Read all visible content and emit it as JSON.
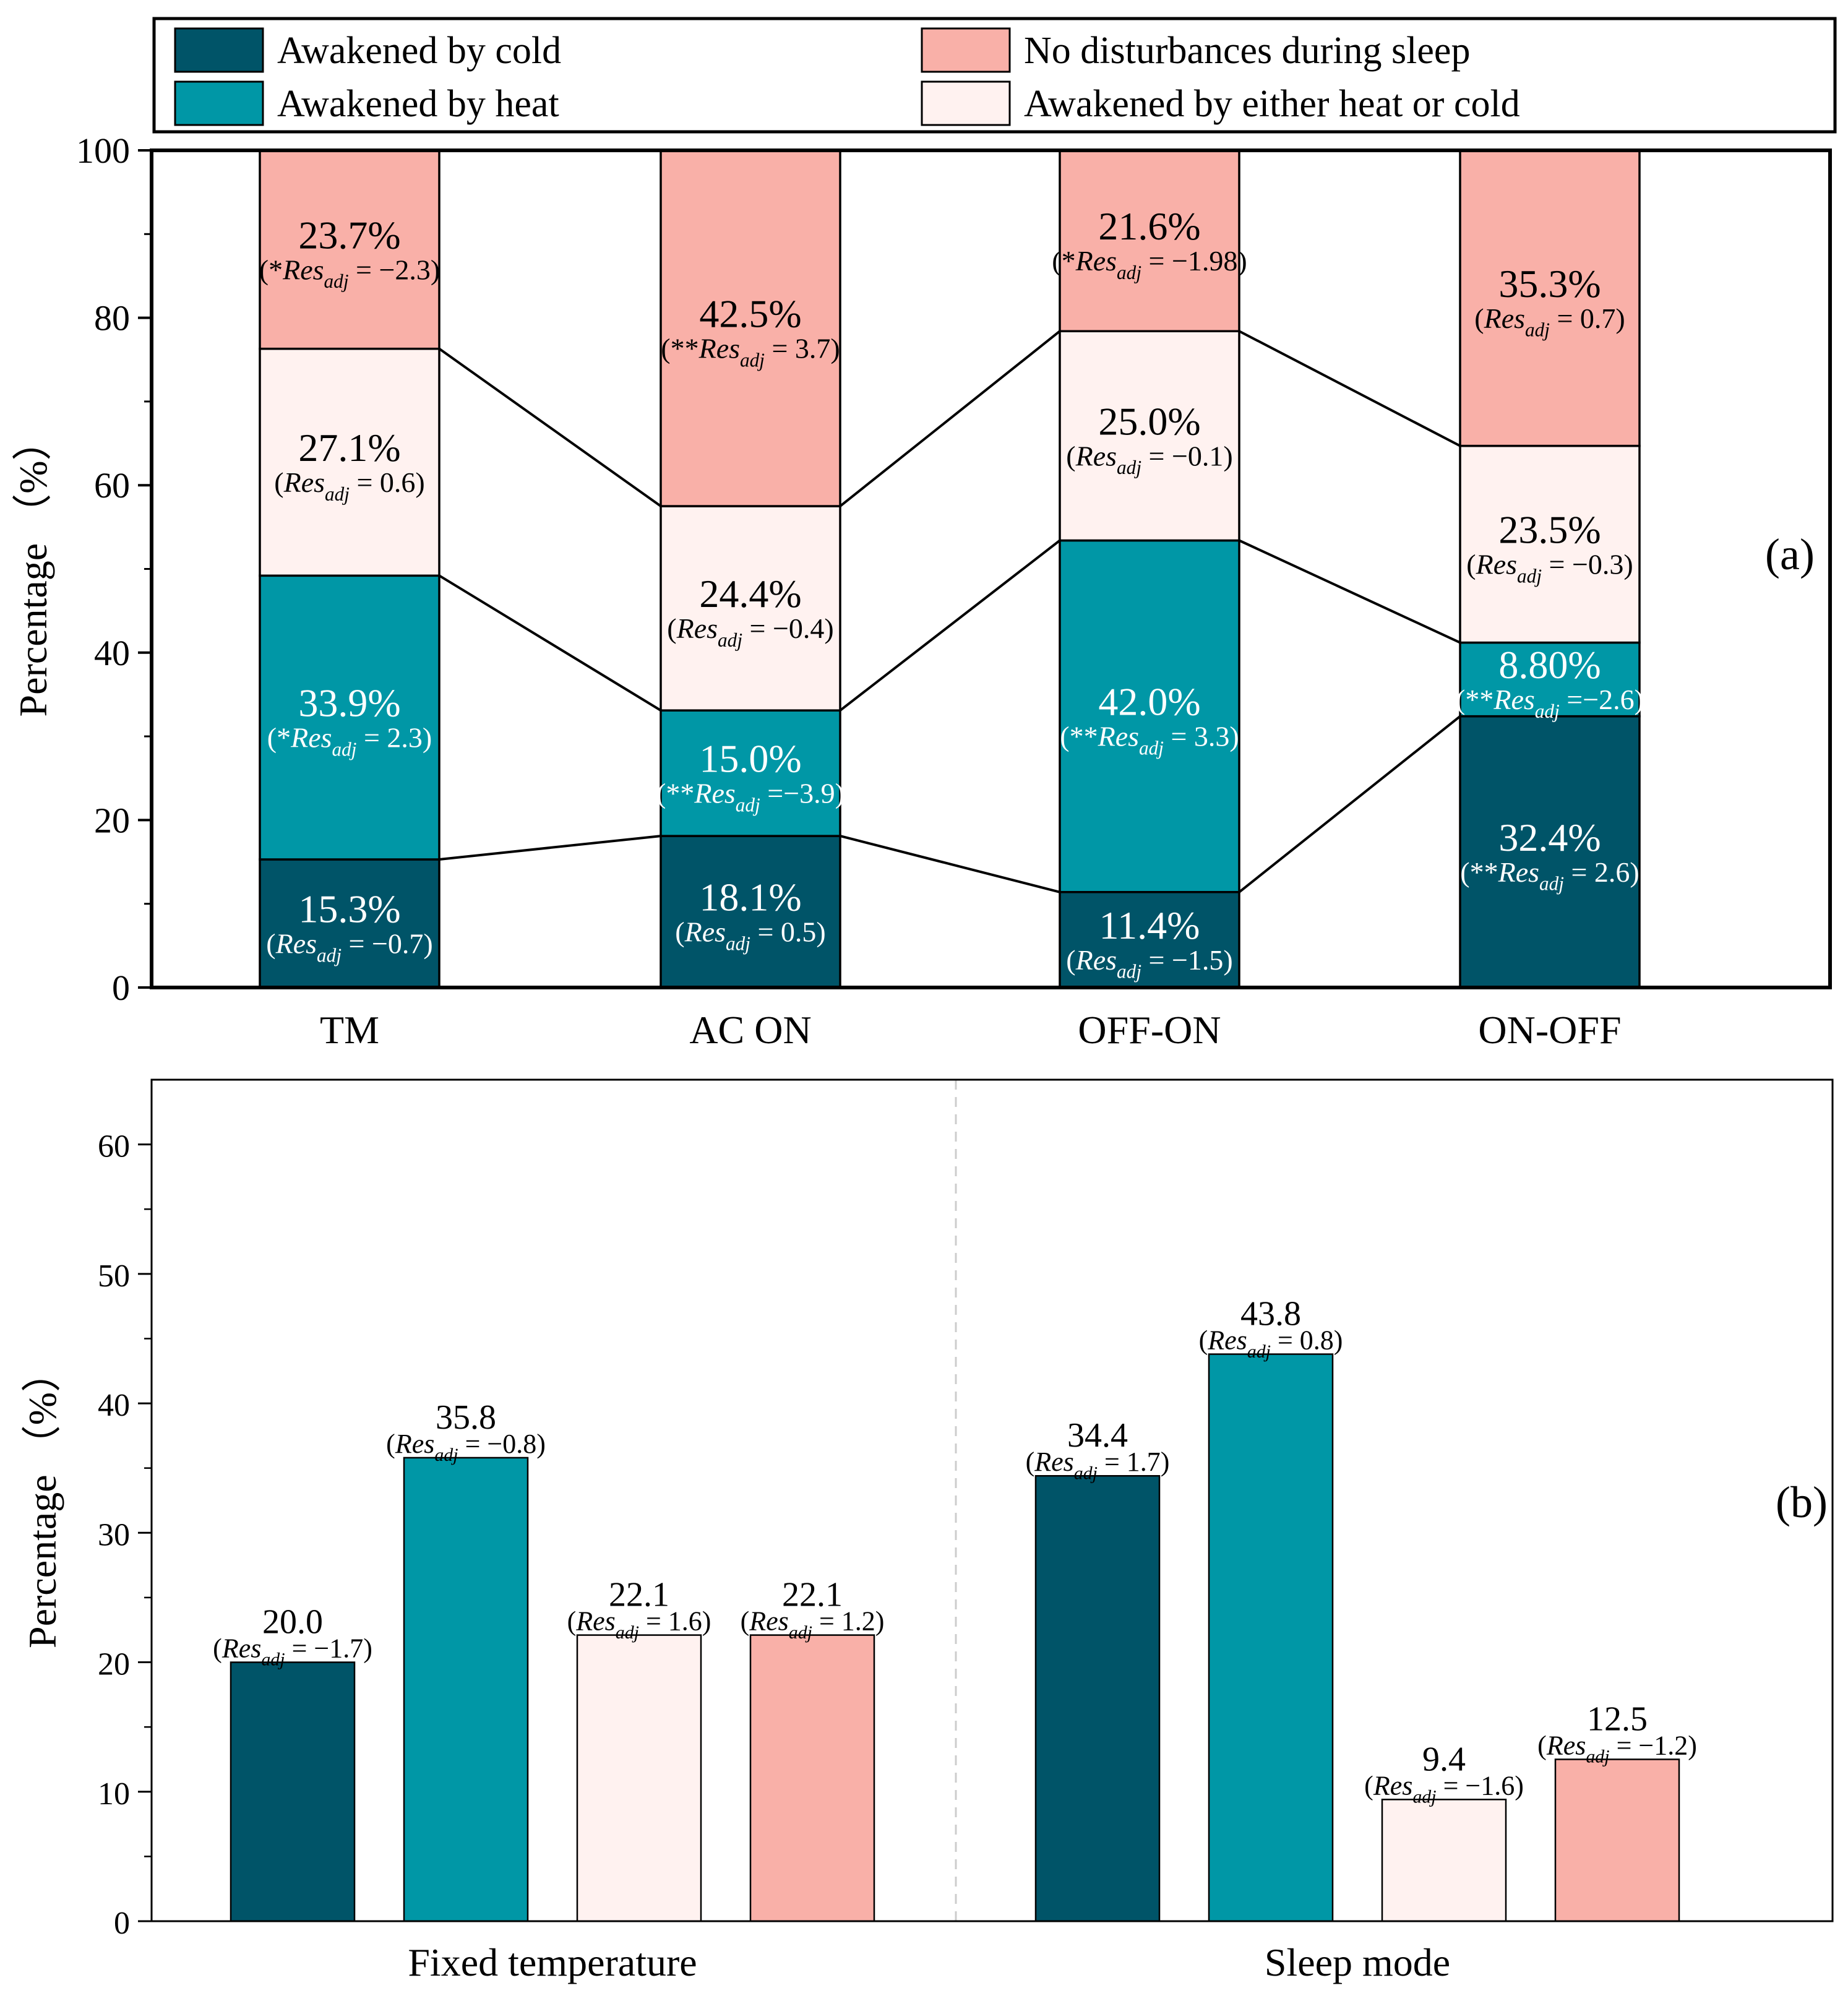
{
  "legend": {
    "entries": [
      {
        "label": "Awakened by cold",
        "color": "#005468"
      },
      {
        "label": "No disturbances during sleep",
        "color": "#F9B0A8"
      },
      {
        "label": "Awakened by heat",
        "color": "#0097A6"
      },
      {
        "label": "Awakened by either heat or cold",
        "color": "#FFF2F0"
      }
    ]
  },
  "chart_data": [
    {
      "type": "bar",
      "stacked": true,
      "panel_label": "(a)",
      "ylabel": "Percentage （%）",
      "ylim": [
        0,
        100
      ],
      "yticks": [
        "0",
        "20",
        "40",
        "60",
        "80",
        "100"
      ],
      "categories": [
        "TM",
        "AC ON",
        "OFF-ON",
        "ON-OFF"
      ],
      "series": [
        {
          "name": "Awakened by cold",
          "color": "#005468",
          "label_color": "#ffffff",
          "values": [
            15.3,
            18.1,
            11.4,
            32.4
          ],
          "labels": [
            "15.3%",
            "18.1%",
            "11.4%",
            "32.4%"
          ],
          "res_prefix": [
            "(",
            "(",
            "(",
            "(**"
          ],
          "res_value": [
            "= −0.7)",
            "= 0.5)",
            "= −1.5)",
            "= 2.6)"
          ]
        },
        {
          "name": "Awakened by heat",
          "color": "#0097A6",
          "label_color": "#ffffff",
          "values": [
            33.9,
            15.0,
            42.0,
            8.8
          ],
          "labels": [
            "33.9%",
            "15.0%",
            "42.0%",
            "8.80%"
          ],
          "res_prefix": [
            "(*",
            "(**",
            "(**",
            "(**"
          ],
          "res_value": [
            "= 2.3)",
            "=−3.9)",
            "= 3.3)",
            "=−2.6)"
          ]
        },
        {
          "name": "Awakened by either heat or cold",
          "color": "#FFF2F0",
          "label_color": "#000000",
          "values": [
            27.1,
            24.4,
            25.0,
            23.5
          ],
          "labels": [
            "27.1%",
            "24.4%",
            "25.0%",
            "23.5%"
          ],
          "res_prefix": [
            "(",
            "(",
            "(",
            "("
          ],
          "res_value": [
            "= 0.6)",
            "= −0.4)",
            "= −0.1)",
            "= −0.3)"
          ]
        },
        {
          "name": "No disturbances during sleep",
          "color": "#F9B0A8",
          "label_color": "#000000",
          "values": [
            23.7,
            42.5,
            21.6,
            35.3
          ],
          "labels": [
            "23.7%",
            "42.5%",
            "21.6%",
            "35.3%"
          ],
          "res_prefix": [
            "(*",
            "(**",
            "(*",
            "("
          ],
          "res_value": [
            "= −2.3)",
            "= 3.7)",
            "= −1.98)",
            "= 0.7)"
          ]
        }
      ]
    },
    {
      "type": "bar",
      "grouped": true,
      "panel_label": "(b)",
      "ylabel": "Percentage （%）",
      "ylim": [
        0,
        65
      ],
      "yticks": [
        "0",
        "10",
        "20",
        "30",
        "40",
        "50",
        "60"
      ],
      "groups": [
        "Fixed temperature",
        "Sleep mode"
      ],
      "series_names": [
        "Awakened by cold",
        "Awakened by heat",
        "Awakened by either heat or cold",
        "No disturbances during sleep"
      ],
      "colors": [
        "#005468",
        "#0097A6",
        "#FFF2F0",
        "#F9B0A8"
      ],
      "values": [
        [
          20.0,
          35.8,
          22.1,
          22.1
        ],
        [
          34.4,
          43.8,
          9.4,
          12.5
        ]
      ],
      "labels": [
        [
          "20.0",
          "35.8",
          "22.1",
          "22.1"
        ],
        [
          "34.4",
          "43.8",
          "9.4",
          "12.5"
        ]
      ],
      "res_value": [
        [
          "= −1.7)",
          "= −0.8)",
          "= 1.6)",
          "= 1.2)"
        ],
        [
          "= 1.7)",
          "= 0.8)",
          "= −1.6)",
          "= −1.2)"
        ]
      ]
    }
  ],
  "res_text": {
    "main": "Res",
    "sub": "adj"
  }
}
